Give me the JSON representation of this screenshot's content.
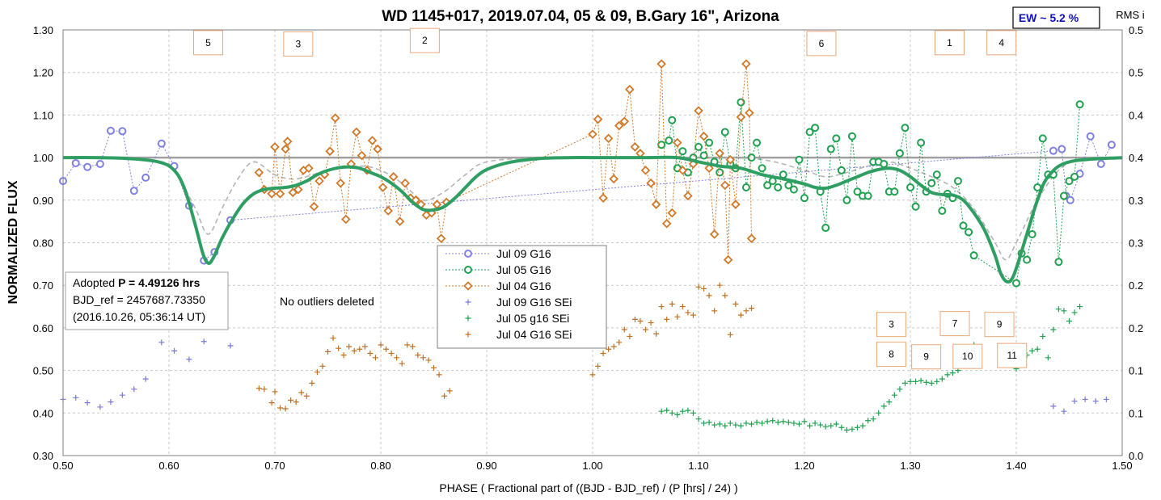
{
  "chart_data": {
    "type": "scatter",
    "title": "WD 1145+017, 2019.07.04, 05 & 09, B.Gary 16\", Arizona",
    "xlabel": "PHASE ( Fractional part of ((BJD - BJD_ref) / (P [hrs] / 24) )",
    "ylabel": "NORMALIZED FLUX",
    "y2label": "RMS i",
    "xlim": [
      0.5,
      1.5
    ],
    "ylim": [
      0.3,
      1.3
    ],
    "y2lim": [
      0.0,
      0.5
    ],
    "x_ticks": [
      "0.50",
      "0.60",
      "0.70",
      "0.80",
      "0.90",
      "1.00",
      "1.10",
      "1.20",
      "1.30",
      "1.40",
      "1.50"
    ],
    "y_ticks": [
      "0.30",
      "0.40",
      "0.50",
      "0.60",
      "0.70",
      "0.80",
      "0.90",
      "1.00",
      "1.10",
      "1.20",
      "1.30"
    ],
    "y2_ticks": [
      "0.0",
      "0.1",
      "0.1",
      "0.2",
      "0.2",
      "0.3",
      "0.3",
      "0.4",
      "0.4",
      "0.5",
      "0.5"
    ],
    "grid": true,
    "ew_box": "EW ~ 5.2 %",
    "info_box": {
      "line1_prefix": "Adopted ",
      "line1_bold": "P = 4.49126 hrs",
      "line2": "BJD_ref = 2457687.73350",
      "line3": "(2016.10.26, 05:36:14 UT)"
    },
    "note": "No outliers deleted",
    "legend_position": "center",
    "dip_labels_top": [
      {
        "text": "5",
        "x": 0.637,
        "y": 1.27
      },
      {
        "text": "3",
        "x": 0.722,
        "y": 1.267
      },
      {
        "text": "2",
        "x": 0.8415,
        "y": 1.275
      },
      {
        "text": "6",
        "x": 1.216,
        "y": 1.268
      },
      {
        "text": "1",
        "x": 1.337,
        "y": 1.27
      },
      {
        "text": "4",
        "x": 1.386,
        "y": 1.27
      }
    ],
    "dip_labels_bottom": [
      {
        "text": "3",
        "x": 1.282,
        "y": 0.608
      },
      {
        "text": "7",
        "x": 1.342,
        "y": 0.61
      },
      {
        "text": "9",
        "x": 1.384,
        "y": 0.608
      },
      {
        "text": "8",
        "x": 1.282,
        "y": 0.538
      },
      {
        "text": "9",
        "x": 1.315,
        "y": 0.532
      },
      {
        "text": "10",
        "x": 1.354,
        "y": 0.533
      },
      {
        "text": "11",
        "x": 1.396,
        "y": 0.535
      }
    ],
    "model_color": "#2e9e63",
    "model_curve": {
      "x": [
        0.5,
        0.53,
        0.56,
        0.59,
        0.605,
        0.615,
        0.625,
        0.632,
        0.637,
        0.642,
        0.65,
        0.66,
        0.67,
        0.68,
        0.69,
        0.7,
        0.71,
        0.72,
        0.73,
        0.74,
        0.75,
        0.76,
        0.77,
        0.78,
        0.79,
        0.8,
        0.81,
        0.82,
        0.83,
        0.84,
        0.85,
        0.86,
        0.87,
        0.88,
        0.89,
        0.9,
        0.92,
        0.95,
        0.98,
        1.0,
        1.05,
        1.08,
        1.1,
        1.12,
        1.14,
        1.16,
        1.18,
        1.2,
        1.21,
        1.22,
        1.23,
        1.24,
        1.25,
        1.26,
        1.27,
        1.28,
        1.29,
        1.3,
        1.31,
        1.32,
        1.33,
        1.34,
        1.35,
        1.36,
        1.37,
        1.38,
        1.385,
        1.39,
        1.395,
        1.4,
        1.41,
        1.42,
        1.43,
        1.45,
        1.5
      ],
      "y": [
        1.0,
        1.0,
        0.998,
        0.99,
        0.97,
        0.925,
        0.84,
        0.775,
        0.752,
        0.765,
        0.81,
        0.855,
        0.892,
        0.915,
        0.925,
        0.928,
        0.93,
        0.935,
        0.945,
        0.96,
        0.97,
        0.976,
        0.978,
        0.975,
        0.965,
        0.955,
        0.94,
        0.92,
        0.895,
        0.878,
        0.877,
        0.885,
        0.905,
        0.93,
        0.955,
        0.972,
        0.988,
        0.998,
        1.0,
        1.0,
        1.0,
        1.0,
        0.99,
        0.98,
        0.975,
        0.96,
        0.95,
        0.938,
        0.93,
        0.928,
        0.935,
        0.945,
        0.955,
        0.965,
        0.972,
        0.975,
        0.97,
        0.955,
        0.935,
        0.918,
        0.913,
        0.912,
        0.9,
        0.87,
        0.83,
        0.77,
        0.73,
        0.71,
        0.712,
        0.74,
        0.82,
        0.9,
        0.955,
        0.99,
        1.0
      ]
    },
    "gray_curves": {
      "x": [
        0.5,
        0.54,
        0.57,
        0.6,
        0.61,
        0.625,
        0.637,
        0.65,
        0.665,
        0.68,
        0.7,
        0.72,
        0.75,
        0.78,
        0.8,
        0.82,
        0.84,
        0.86,
        0.88,
        0.9,
        0.95,
        1.0,
        1.1,
        1.16,
        1.2,
        1.22,
        1.24,
        1.26,
        1.28,
        1.3,
        1.32,
        1.34,
        1.36,
        1.38,
        1.39,
        1.4,
        1.42,
        1.44,
        1.46,
        1.5
      ],
      "y": [
        1.0,
        1.0,
        0.998,
        0.985,
        0.95,
        0.88,
        0.82,
        0.88,
        0.95,
        0.99,
        0.96,
        0.95,
        0.97,
        0.98,
        0.97,
        0.94,
        0.9,
        0.92,
        0.96,
        0.99,
        1.0,
        1.0,
        1.0,
        0.995,
        0.97,
        0.955,
        0.965,
        0.98,
        0.99,
        0.975,
        0.955,
        0.93,
        0.88,
        0.8,
        0.76,
        0.8,
        0.9,
        0.97,
        0.995,
        1.0
      ]
    },
    "series": [
      {
        "name": "Jul 09 G16",
        "color": "#8080e0",
        "marker": "circle",
        "axis": "left",
        "line": true,
        "x": [
          0.5,
          0.512,
          0.523,
          0.535,
          0.545,
          0.556,
          0.567,
          0.578,
          0.593,
          0.605,
          0.619,
          0.633,
          0.643,
          0.658,
          1.435,
          1.443,
          1.447,
          1.451,
          1.46,
          1.47,
          1.48,
          1.49
        ],
        "y": [
          0.945,
          0.987,
          0.978,
          0.985,
          1.063,
          1.062,
          0.922,
          0.953,
          1.033,
          0.98,
          0.887,
          0.758,
          0.778,
          0.853,
          1.016,
          1.02,
          0.91,
          0.9,
          0.962,
          1.05,
          0.985,
          1.03
        ]
      },
      {
        "name": "Jul 05 G16",
        "color": "#20a050",
        "marker": "circle",
        "axis": "left",
        "line": true,
        "x": [
          1.065,
          1.072,
          1.075,
          1.08,
          1.085,
          1.09,
          1.095,
          1.1,
          1.105,
          1.11,
          1.115,
          1.12,
          1.125,
          1.13,
          1.135,
          1.14,
          1.145,
          1.15,
          1.155,
          1.16,
          1.165,
          1.17,
          1.175,
          1.18,
          1.185,
          1.19,
          1.195,
          1.2,
          1.205,
          1.21,
          1.215,
          1.22,
          1.225,
          1.23,
          1.235,
          1.24,
          1.245,
          1.25,
          1.255,
          1.26,
          1.265,
          1.27,
          1.275,
          1.28,
          1.285,
          1.29,
          1.295,
          1.3,
          1.305,
          1.31,
          1.315,
          1.32,
          1.325,
          1.33,
          1.335,
          1.34,
          1.345,
          1.35,
          1.355,
          1.36,
          1.4,
          1.405,
          1.41,
          1.415,
          1.42,
          1.425,
          1.43,
          1.435,
          1.44,
          1.445,
          1.45,
          1.455,
          1.46
        ],
        "y": [
          1.03,
          1.04,
          1.088,
          0.975,
          1.015,
          0.965,
          1.0,
          1.025,
          1.005,
          1.035,
          0.99,
          0.965,
          1.06,
          0.985,
          0.975,
          1.13,
          0.93,
          1.0,
          1.035,
          0.975,
          0.935,
          0.945,
          0.93,
          0.96,
          0.935,
          0.925,
          0.995,
          0.905,
          1.06,
          1.07,
          0.92,
          0.835,
          1.02,
          1.045,
          0.97,
          0.9,
          1.05,
          0.92,
          0.91,
          0.91,
          0.99,
          0.99,
          0.985,
          0.92,
          0.92,
          1.01,
          1.07,
          0.93,
          0.885,
          1.035,
          0.92,
          0.94,
          0.96,
          0.875,
          0.915,
          0.905,
          0.945,
          0.84,
          0.825,
          0.77,
          0.705,
          0.775,
          0.76,
          0.82,
          0.93,
          1.045,
          0.96,
          0.96,
          0.755,
          0.91,
          0.945,
          0.955,
          1.125
        ]
      },
      {
        "name": "Jul 04 G16",
        "color": "#d07828",
        "marker": "diamond",
        "axis": "left",
        "line": true,
        "x": [
          0.685,
          0.69,
          0.697,
          0.7,
          0.705,
          0.71,
          0.712,
          0.717,
          0.722,
          0.727,
          0.732,
          0.737,
          0.742,
          0.747,
          0.752,
          0.757,
          0.762,
          0.767,
          0.772,
          0.777,
          0.782,
          0.787,
          0.792,
          0.797,
          0.802,
          0.807,
          0.812,
          0.818,
          0.823,
          0.828,
          0.833,
          0.838,
          0.843,
          0.848,
          0.853,
          0.857,
          0.862,
          1.0,
          1.005,
          1.01,
          1.015,
          1.02,
          1.025,
          1.03,
          1.035,
          1.04,
          1.045,
          1.05,
          1.055,
          1.06,
          1.065,
          1.07,
          1.075,
          1.08,
          1.085,
          1.09,
          1.095,
          1.1,
          1.105,
          1.11,
          1.115,
          1.12,
          1.125,
          1.128,
          1.13,
          1.135,
          1.14,
          1.145,
          1.148,
          1.15
        ],
        "y": [
          0.965,
          0.925,
          0.915,
          1.025,
          0.915,
          1.02,
          1.038,
          0.918,
          0.925,
          0.97,
          0.975,
          0.885,
          0.945,
          0.96,
          1.015,
          1.093,
          0.94,
          0.855,
          0.985,
          1.06,
          1.005,
          0.97,
          1.04,
          1.02,
          0.93,
          0.875,
          0.955,
          0.85,
          0.94,
          0.905,
          0.9,
          0.89,
          0.865,
          0.87,
          0.89,
          0.81,
          0.895,
          1.055,
          1.09,
          0.905,
          1.045,
          0.95,
          1.075,
          1.085,
          1.16,
          1.025,
          1.01,
          0.97,
          0.94,
          0.89,
          1.22,
          0.845,
          0.87,
          1.035,
          0.97,
          0.91,
          0.985,
          1.11,
          1.05,
          0.975,
          0.82,
          1.01,
          0.935,
          0.76,
          0.995,
          0.89,
          1.095,
          1.22,
          1.105,
          0.81
        ]
      },
      {
        "name": "Jul 09 G16 SEi",
        "color": "#7878d8",
        "marker": "plus",
        "axis": "right",
        "line": false,
        "x": [
          0.5,
          0.512,
          0.523,
          0.535,
          0.545,
          0.556,
          0.567,
          0.578,
          0.593,
          0.605,
          0.619,
          0.633,
          0.658,
          1.435,
          1.445,
          1.455,
          1.465,
          1.475,
          1.485
        ],
        "y": [
          0.066,
          0.068,
          0.062,
          0.057,
          0.063,
          0.071,
          0.078,
          0.09,
          0.133,
          0.123,
          0.113,
          0.134,
          0.129,
          0.058,
          0.052,
          0.064,
          0.066,
          0.064,
          0.066
        ]
      },
      {
        "name": "Jul 05 g16 SEi",
        "color": "#20a050",
        "marker": "plus",
        "axis": "right",
        "line": false,
        "x": [
          1.065,
          1.07,
          1.075,
          1.08,
          1.085,
          1.09,
          1.095,
          1.1,
          1.105,
          1.11,
          1.115,
          1.12,
          1.125,
          1.13,
          1.135,
          1.14,
          1.145,
          1.15,
          1.155,
          1.16,
          1.165,
          1.17,
          1.175,
          1.18,
          1.185,
          1.19,
          1.195,
          1.2,
          1.205,
          1.21,
          1.215,
          1.22,
          1.225,
          1.23,
          1.235,
          1.24,
          1.245,
          1.25,
          1.255,
          1.26,
          1.265,
          1.27,
          1.275,
          1.28,
          1.285,
          1.29,
          1.295,
          1.3,
          1.305,
          1.31,
          1.315,
          1.32,
          1.325,
          1.33,
          1.335,
          1.34,
          1.345,
          1.35,
          1.355,
          1.36,
          1.4,
          1.405,
          1.41,
          1.415,
          1.42,
          1.425,
          1.43,
          1.435,
          1.44,
          1.445,
          1.45,
          1.455,
          1.46
        ],
        "y": [
          0.052,
          0.053,
          0.05,
          0.048,
          0.052,
          0.053,
          0.05,
          0.043,
          0.038,
          0.039,
          0.036,
          0.037,
          0.035,
          0.038,
          0.036,
          0.035,
          0.038,
          0.037,
          0.039,
          0.038,
          0.04,
          0.041,
          0.039,
          0.04,
          0.039,
          0.038,
          0.037,
          0.04,
          0.035,
          0.038,
          0.036,
          0.034,
          0.035,
          0.037,
          0.033,
          0.03,
          0.031,
          0.033,
          0.035,
          0.041,
          0.043,
          0.05,
          0.058,
          0.063,
          0.071,
          0.078,
          0.085,
          0.087,
          0.087,
          0.088,
          0.086,
          0.085,
          0.087,
          0.09,
          0.095,
          0.097,
          0.1,
          0.108,
          0.12,
          0.13,
          0.102,
          0.115,
          0.118,
          0.123,
          0.125,
          0.14,
          0.115,
          0.148,
          0.172,
          0.17,
          0.158,
          0.168,
          0.175
        ]
      },
      {
        "name": "Jul 04 G16 SEi",
        "color": "#c07020",
        "marker": "plus",
        "axis": "right",
        "line": false,
        "x": [
          0.685,
          0.69,
          0.697,
          0.7,
          0.705,
          0.71,
          0.715,
          0.72,
          0.725,
          0.73,
          0.735,
          0.74,
          0.745,
          0.75,
          0.755,
          0.76,
          0.765,
          0.77,
          0.775,
          0.78,
          0.785,
          0.79,
          0.795,
          0.8,
          0.805,
          0.81,
          0.815,
          0.82,
          0.825,
          0.83,
          0.835,
          0.84,
          0.845,
          0.85,
          0.855,
          0.86,
          0.865,
          1.0,
          1.005,
          1.01,
          1.015,
          1.02,
          1.025,
          1.03,
          1.035,
          1.04,
          1.045,
          1.05,
          1.055,
          1.06,
          1.065,
          1.07,
          1.075,
          1.08,
          1.085,
          1.09,
          1.095,
          1.1,
          1.105,
          1.11,
          1.115,
          1.12,
          1.125,
          1.13,
          1.135,
          1.14,
          1.145,
          1.15
        ],
        "y": [
          0.079,
          0.078,
          0.062,
          0.075,
          0.056,
          0.055,
          0.065,
          0.063,
          0.074,
          0.07,
          0.085,
          0.098,
          0.105,
          0.122,
          0.138,
          0.126,
          0.118,
          0.128,
          0.123,
          0.125,
          0.128,
          0.12,
          0.115,
          0.13,
          0.125,
          0.12,
          0.115,
          0.108,
          0.13,
          0.128,
          0.118,
          0.115,
          0.112,
          0.103,
          0.095,
          0.07,
          0.076,
          0.095,
          0.105,
          0.12,
          0.125,
          0.128,
          0.133,
          0.148,
          0.14,
          0.16,
          0.158,
          0.148,
          0.156,
          0.143,
          0.175,
          0.16,
          0.178,
          0.163,
          0.175,
          0.168,
          0.165,
          0.198,
          0.196,
          0.188,
          0.17,
          0.2,
          0.188,
          0.142,
          0.178,
          0.165,
          0.17,
          0.173
        ]
      }
    ]
  }
}
